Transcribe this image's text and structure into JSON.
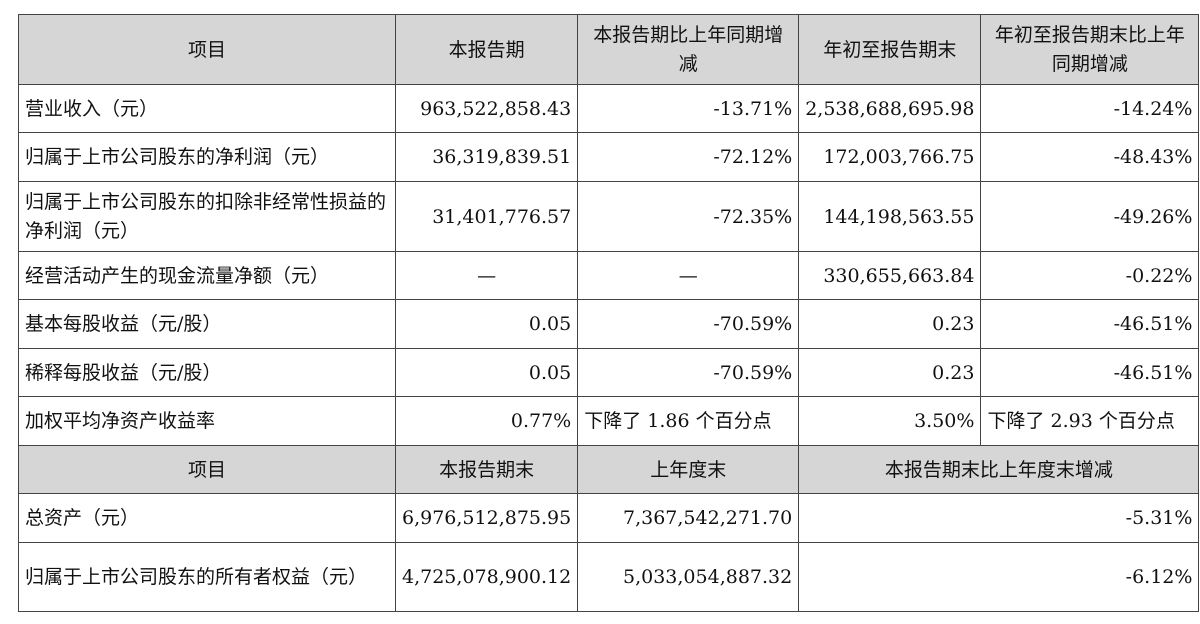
{
  "header1": [
    "项目",
    "本报告期",
    "本报告期比上年同期增减",
    "年初至报告期末",
    "年初至报告期末比上年同期增减"
  ],
  "rows1": [
    {
      "label": "营业收入（元）",
      "current": "963,522,858.43",
      "current_change": "-13.71%",
      "ytd": "2,538,688,695.98",
      "ytd_change": "-14.24%"
    },
    {
      "label": "归属于上市公司股东的净利润（元）",
      "current": "36,319,839.51",
      "current_change": "-72.12%",
      "ytd": "172,003,766.75",
      "ytd_change": "-48.43%"
    },
    {
      "label": "归属于上市公司股东的扣除非经常性损益的净利润（元）",
      "current": "31,401,776.57",
      "current_change": "-72.35%",
      "ytd": "144,198,563.55",
      "ytd_change": "-49.26%"
    },
    {
      "label": "经营活动产生的现金流量净额（元）",
      "current": "—",
      "current_change": "—",
      "ytd": "330,655,663.84",
      "ytd_change": "-0.22%"
    },
    {
      "label": "基本每股收益（元/股）",
      "current": "0.05",
      "current_change": "-70.59%",
      "ytd": "0.23",
      "ytd_change": "-46.51%"
    },
    {
      "label": "稀释每股收益（元/股）",
      "current": "0.05",
      "current_change": "-70.59%",
      "ytd": "0.23",
      "ytd_change": "-46.51%"
    },
    {
      "label": "加权平均净资产收益率",
      "current": "0.77%",
      "current_change": "下降了 1.86 个百分点",
      "ytd": "3.50%",
      "ytd_change": "下降了 2.93 个百分点"
    }
  ],
  "header2": [
    "项目",
    "本报告期末",
    "上年度末",
    "本报告期末比上年度末增减"
  ],
  "rows2": [
    {
      "label": "总资产（元）",
      "period_end": "6,976,512,875.95",
      "prior_year_end": "7,367,542,271.70",
      "change": "-5.31%"
    },
    {
      "label": "归属于上市公司股东的所有者权益（元）",
      "period_end": "4,725,078,900.12",
      "prior_year_end": "5,033,054,887.32",
      "change": "-6.12%"
    }
  ]
}
